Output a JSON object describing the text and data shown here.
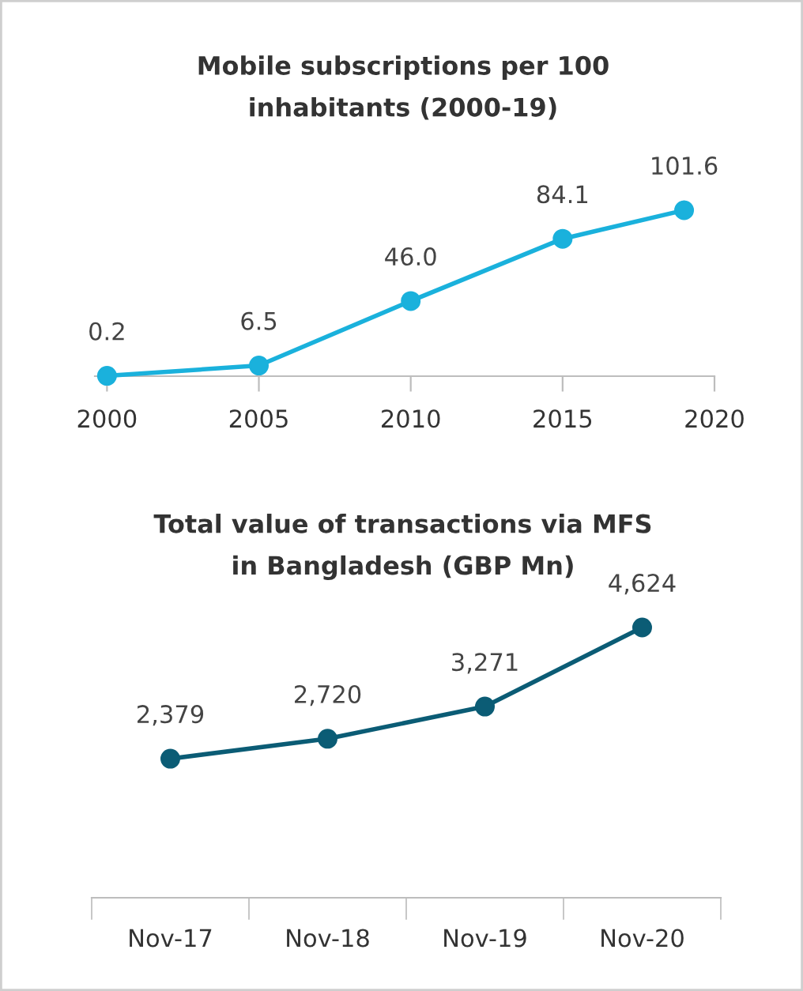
{
  "chart_data": [
    {
      "type": "line",
      "title": "Mobile subscriptions per 100\ninhabitants (2000-19)",
      "x": [
        2000,
        2005,
        2010,
        2015,
        2019
      ],
      "xlim": [
        1999.6,
        2020
      ],
      "xticks": [
        2000,
        2005,
        2010,
        2015,
        2020
      ],
      "series": [
        {
          "color": "#1ab1dc",
          "values": [
            0.2,
            6.5,
            46.0,
            84.1,
            101.6
          ],
          "value_labels": [
            "0.2",
            "6.5",
            "46.0",
            "84.1",
            "101.6"
          ]
        }
      ],
      "marker": "circle",
      "grid": false,
      "tick_labels": "x"
    },
    {
      "type": "line",
      "title": "Total value of transactions via MFS\nin Bangladesh (GBP Mn)",
      "categories": [
        "Nov-17",
        "Nov-18",
        "Nov-19",
        "Nov-20"
      ],
      "series": [
        {
          "color": "#0b5c75",
          "values": [
            2379,
            2720,
            3271,
            4624
          ],
          "value_labels": [
            "2,379",
            "2,720",
            "3,271",
            "4,624"
          ]
        }
      ],
      "marker": "circle",
      "grid": false,
      "tick_labels": "x"
    }
  ]
}
